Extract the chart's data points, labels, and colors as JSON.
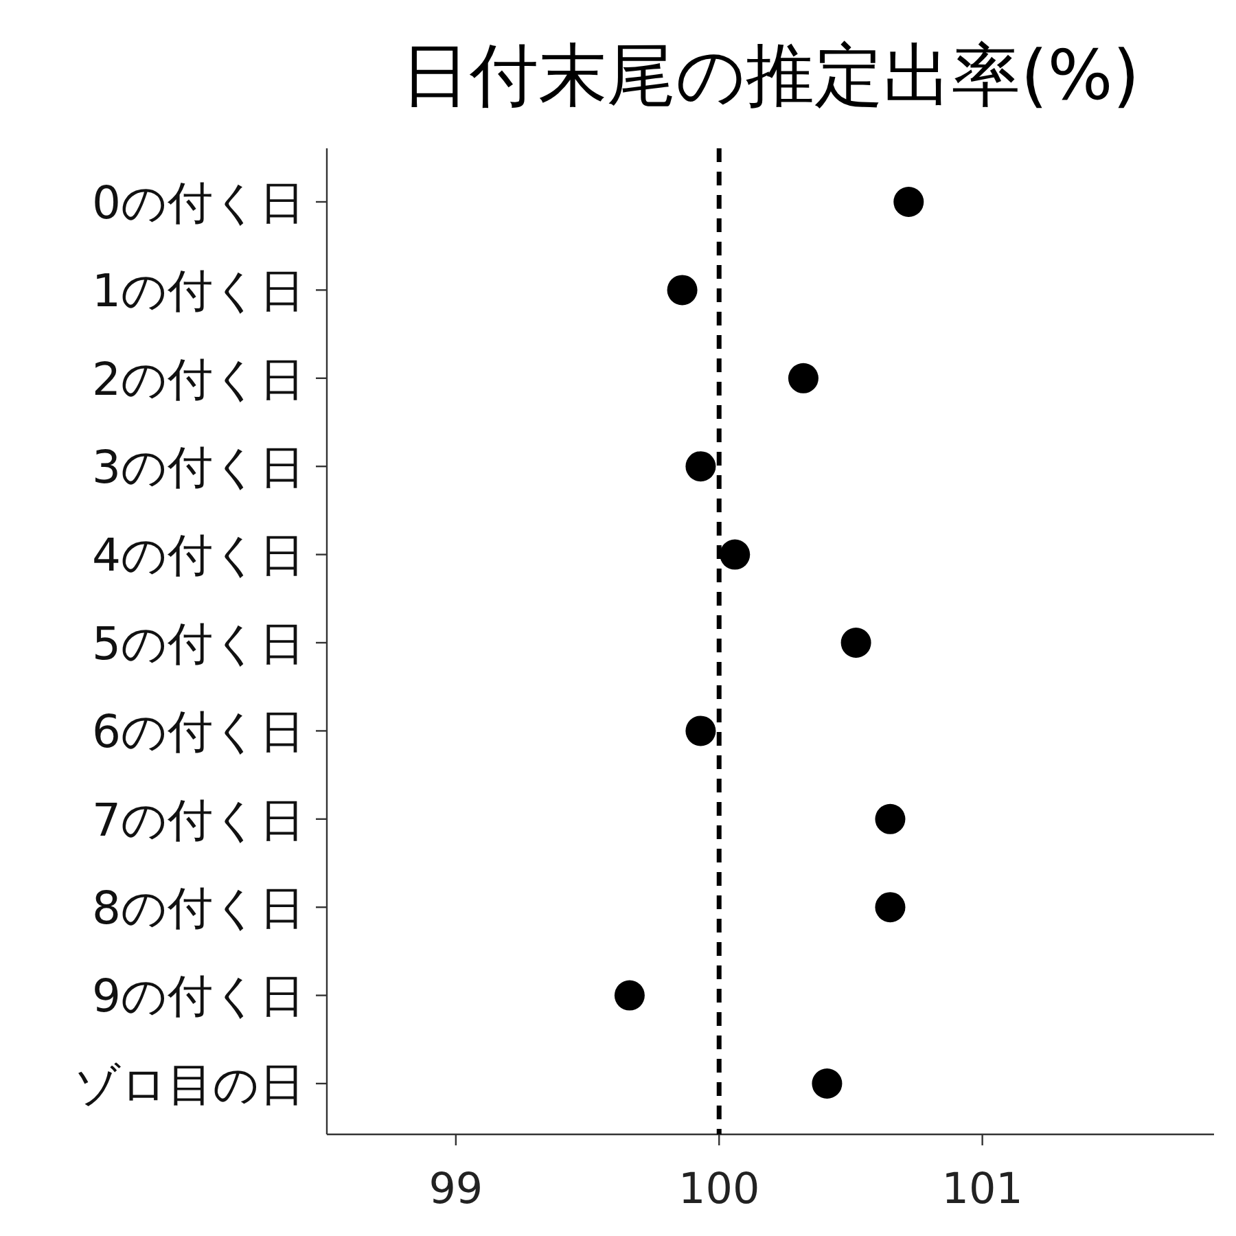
{
  "chart_data": {
    "type": "scatter",
    "orientation": "horizontal",
    "title": "日付末尾の推定出率(%)",
    "categories": [
      "0の付く日",
      "1の付く日",
      "2の付く日",
      "3の付く日",
      "4の付く日",
      "5の付く日",
      "6の付く日",
      "7の付く日",
      "8の付く日",
      "9の付く日",
      "ゾロ目の日"
    ],
    "values": [
      100.72,
      99.86,
      100.32,
      99.93,
      100.06,
      100.52,
      99.93,
      100.65,
      100.65,
      99.66,
      100.41
    ],
    "color": "#000000",
    "marker": "circle",
    "xlim": [
      98.51,
      101.88
    ],
    "xticks": [
      99,
      100,
      101
    ],
    "ref_lines": [
      {
        "axis": "x",
        "value": 100,
        "line_style": "dashed",
        "color": "#000000"
      }
    ],
    "grid": false
  }
}
